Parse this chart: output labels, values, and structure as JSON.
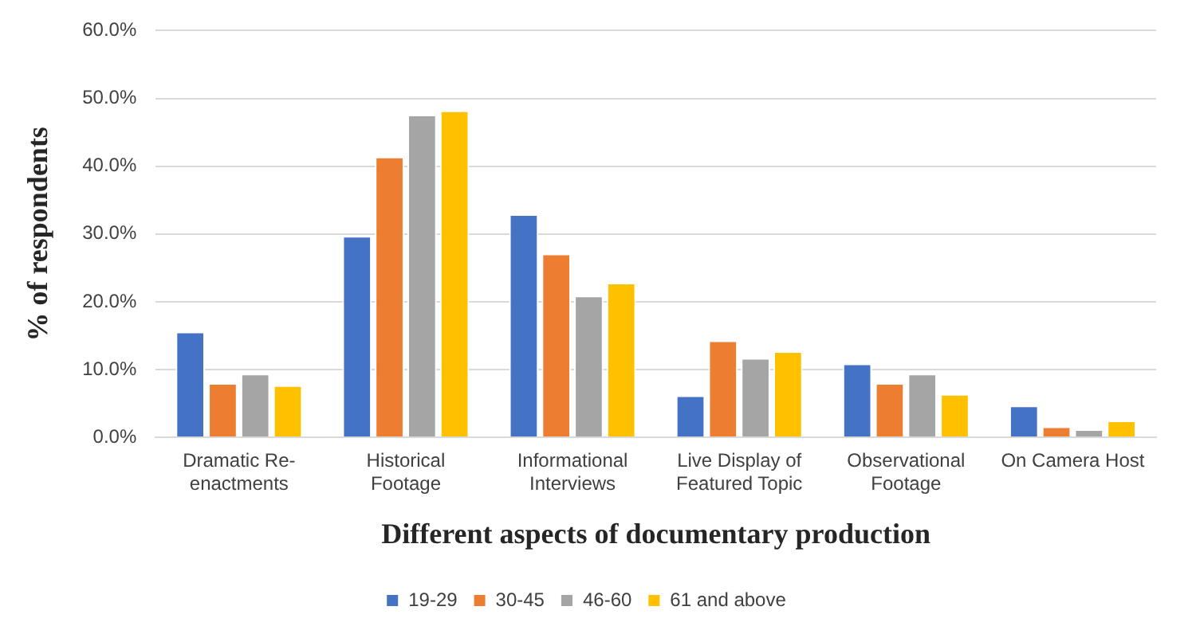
{
  "chart_data": {
    "type": "bar",
    "xlabel": "Different aspects of documentary production",
    "ylabel": "% of respondents",
    "categories": [
      "Dramatic Re-enactments",
      "Historical Footage",
      "Informational Interviews",
      "Live Display of Featured Topic",
      "Observational Footage",
      "On Camera Host"
    ],
    "series": [
      {
        "name": "19-29",
        "color": "#4472c4",
        "values": [
          15.6,
          29.7,
          32.9,
          6.2,
          10.9,
          4.7
        ]
      },
      {
        "name": "30-45",
        "color": "#ed7d31",
        "values": [
          8.0,
          41.4,
          27.1,
          14.3,
          8.0,
          1.6
        ]
      },
      {
        "name": "46-60",
        "color": "#a5a5a5",
        "values": [
          9.4,
          47.6,
          20.9,
          11.7,
          9.4,
          1.2
        ]
      },
      {
        "name": "61 and above",
        "color": "#ffc000",
        "values": [
          7.7,
          48.2,
          22.8,
          12.7,
          6.4,
          2.5
        ]
      }
    ],
    "ylim": [
      0,
      60
    ],
    "yticks": [
      {
        "value": 0,
        "label": "0.0%"
      },
      {
        "value": 10,
        "label": "10.0%"
      },
      {
        "value": 20,
        "label": "20.0%"
      },
      {
        "value": 30,
        "label": "30.0%"
      },
      {
        "value": 40,
        "label": "40.0%"
      },
      {
        "value": 50,
        "label": "50.0%"
      },
      {
        "value": 60,
        "label": "60.0%"
      }
    ],
    "grid": "y",
    "legend": "bottom"
  }
}
